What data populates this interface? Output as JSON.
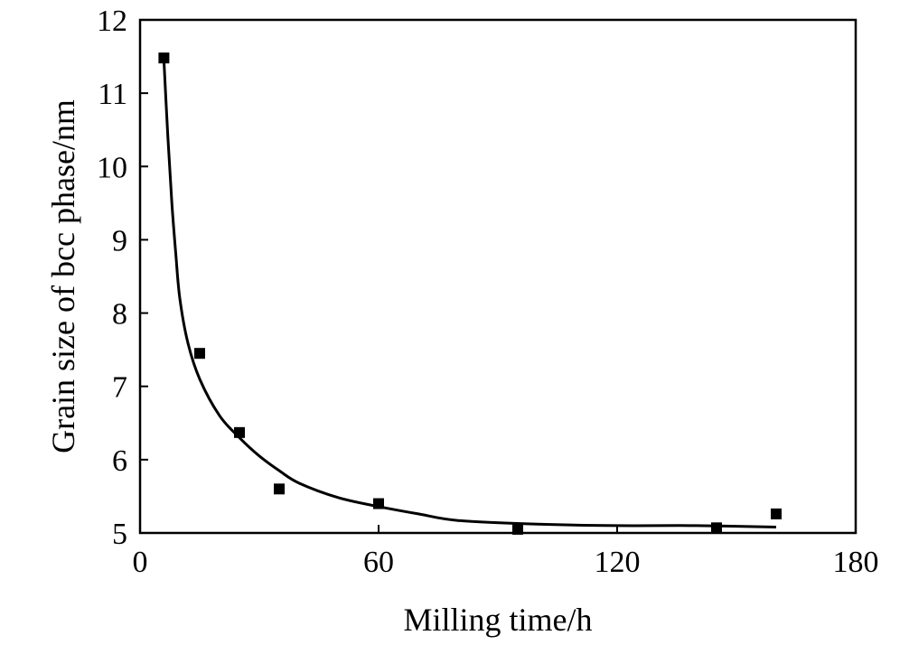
{
  "chart_data": {
    "type": "scatter",
    "title": "",
    "xlabel": "Milling time/h",
    "ylabel": "Grain size of bcc phase/nm",
    "xlim": [
      0,
      180
    ],
    "ylim": [
      5,
      12
    ],
    "x_ticks": [
      0,
      60,
      120,
      180
    ],
    "y_ticks": [
      5,
      6,
      7,
      8,
      9,
      10,
      11,
      12
    ],
    "grid": false,
    "legend": "none",
    "marker": "square",
    "color": "#000000",
    "series": [
      {
        "points": [
          {
            "x": 6,
            "y": 11.48
          },
          {
            "x": 15,
            "y": 7.45
          },
          {
            "x": 25,
            "y": 6.37
          },
          {
            "x": 35,
            "y": 5.6
          },
          {
            "x": 60,
            "y": 5.4
          },
          {
            "x": 95,
            "y": 5.05
          },
          {
            "x": 145,
            "y": 5.07
          },
          {
            "x": 160,
            "y": 5.26
          }
        ]
      }
    ],
    "fit_curve": [
      {
        "x": 6,
        "y": 11.45
      },
      {
        "x": 7,
        "y": 10.4
      },
      {
        "x": 8,
        "y": 9.5
      },
      {
        "x": 9,
        "y": 8.8
      },
      {
        "x": 10,
        "y": 8.2
      },
      {
        "x": 12,
        "y": 7.6
      },
      {
        "x": 15,
        "y": 7.1
      },
      {
        "x": 20,
        "y": 6.6
      },
      {
        "x": 25,
        "y": 6.3
      },
      {
        "x": 30,
        "y": 6.05
      },
      {
        "x": 35,
        "y": 5.85
      },
      {
        "x": 40,
        "y": 5.68
      },
      {
        "x": 50,
        "y": 5.48
      },
      {
        "x": 60,
        "y": 5.36
      },
      {
        "x": 70,
        "y": 5.26
      },
      {
        "x": 80,
        "y": 5.17
      },
      {
        "x": 100,
        "y": 5.12
      },
      {
        "x": 120,
        "y": 5.1
      },
      {
        "x": 140,
        "y": 5.1
      },
      {
        "x": 160,
        "y": 5.08
      }
    ]
  }
}
